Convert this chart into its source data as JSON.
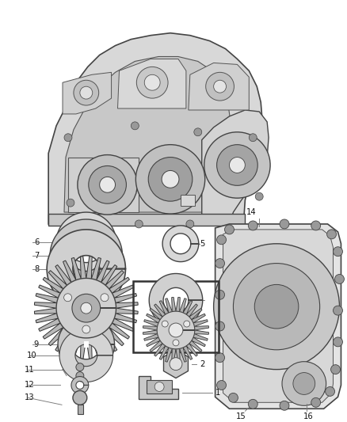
{
  "bg_color": "#ffffff",
  "fig_width": 4.38,
  "fig_height": 5.33,
  "dpi": 100,
  "dark": "#333333",
  "med": "#777777",
  "light": "#cccccc",
  "body_color": "#e0e0e0",
  "callout_lw": 0.6,
  "callout_fs": 7.0,
  "callout_color": "#555555"
}
